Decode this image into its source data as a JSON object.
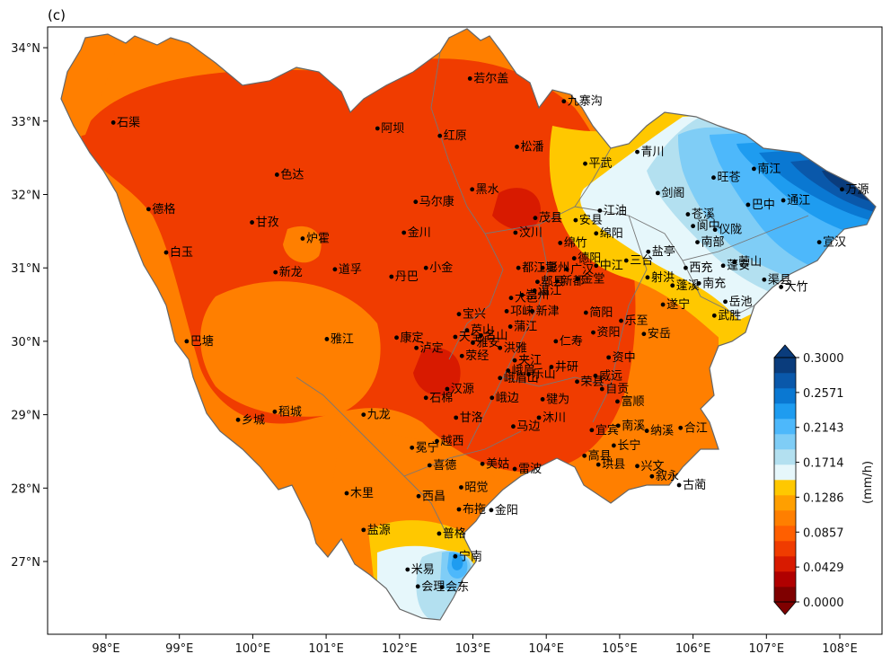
{
  "panel_label": "(c)",
  "unit_label": "(mm/h)",
  "lon_ticks": [
    {
      "lon": 98,
      "label": "98°E"
    },
    {
      "lon": 99,
      "label": "99°E"
    },
    {
      "lon": 100,
      "label": "100°E"
    },
    {
      "lon": 101,
      "label": "101°E"
    },
    {
      "lon": 102,
      "label": "102°E"
    },
    {
      "lon": 103,
      "label": "103°E"
    },
    {
      "lon": 104,
      "label": "104°E"
    },
    {
      "lon": 105,
      "label": "105°E"
    },
    {
      "lon": 106,
      "label": "106°E"
    },
    {
      "lon": 107,
      "label": "107°E"
    },
    {
      "lon": 108,
      "label": "108°E"
    }
  ],
  "lat_ticks": [
    {
      "lat": 34,
      "label": "34°N"
    },
    {
      "lat": 33,
      "label": "33°N"
    },
    {
      "lat": 32,
      "label": "32°N"
    },
    {
      "lat": 31,
      "label": "31°N"
    },
    {
      "lat": 30,
      "label": "30°N"
    },
    {
      "lat": 29,
      "label": "29°N"
    },
    {
      "lat": 28,
      "label": "28°N"
    },
    {
      "lat": 27,
      "label": "27°N"
    }
  ],
  "colorbar": {
    "ticks": [
      "0.0000",
      "0.0429",
      "0.0857",
      "0.1286",
      "0.1714",
      "0.2143",
      "0.2571",
      "0.3000"
    ],
    "colors": [
      "#7f0000",
      "#b00000",
      "#d81a00",
      "#f03c00",
      "#ff5f00",
      "#ff7f00",
      "#ff9f00",
      "#ffc800",
      "#e6f7fb",
      "#b3e0f0",
      "#7fcdf6",
      "#4db8fb",
      "#1e9cf0",
      "#0a78d2",
      "#0a58aa",
      "#0a3c7c"
    ]
  },
  "cities": [
    {
      "name": "若尔盖",
      "lon": 102.96,
      "lat": 33.58
    },
    {
      "name": "九寨沟",
      "lon": 104.24,
      "lat": 33.27
    },
    {
      "name": "石渠",
      "lon": 98.1,
      "lat": 32.98
    },
    {
      "name": "阿坝",
      "lon": 101.7,
      "lat": 32.9
    },
    {
      "name": "红原",
      "lon": 102.55,
      "lat": 32.8
    },
    {
      "name": "松潘",
      "lon": 103.6,
      "lat": 32.65
    },
    {
      "name": "青川",
      "lon": 105.24,
      "lat": 32.58
    },
    {
      "name": "平武",
      "lon": 104.53,
      "lat": 32.42
    },
    {
      "name": "色达",
      "lon": 100.33,
      "lat": 32.27
    },
    {
      "name": "旺苍",
      "lon": 106.28,
      "lat": 32.23
    },
    {
      "name": "南江",
      "lon": 106.83,
      "lat": 32.35
    },
    {
      "name": "万源",
      "lon": 108.03,
      "lat": 32.07
    },
    {
      "name": "黑水",
      "lon": 102.99,
      "lat": 32.07
    },
    {
      "name": "马尔康",
      "lon": 102.22,
      "lat": 31.9
    },
    {
      "name": "剑阁",
      "lon": 105.52,
      "lat": 32.02
    },
    {
      "name": "江油",
      "lon": 104.73,
      "lat": 31.78
    },
    {
      "name": "通江",
      "lon": 107.23,
      "lat": 31.92
    },
    {
      "name": "巴中",
      "lon": 106.75,
      "lat": 31.86
    },
    {
      "name": "德格",
      "lon": 98.58,
      "lat": 31.8
    },
    {
      "name": "苍溪",
      "lon": 105.93,
      "lat": 31.73
    },
    {
      "name": "茂县",
      "lon": 103.85,
      "lat": 31.68
    },
    {
      "name": "安县",
      "lon": 104.4,
      "lat": 31.65
    },
    {
      "name": "阆中",
      "lon": 106.0,
      "lat": 31.57
    },
    {
      "name": "甘孜",
      "lon": 99.99,
      "lat": 31.62
    },
    {
      "name": "仪陇",
      "lon": 106.3,
      "lat": 31.52
    },
    {
      "name": "汶川",
      "lon": 103.58,
      "lat": 31.48
    },
    {
      "name": "金川",
      "lon": 102.06,
      "lat": 31.48
    },
    {
      "name": "绵竹",
      "lon": 104.19,
      "lat": 31.34
    },
    {
      "name": "绵阳",
      "lon": 104.68,
      "lat": 31.47
    },
    {
      "name": "炉霍",
      "lon": 100.68,
      "lat": 31.4
    },
    {
      "name": "宣汉",
      "lon": 107.72,
      "lat": 31.35
    },
    {
      "name": "盐亭",
      "lon": 105.39,
      "lat": 31.22
    },
    {
      "name": "南部",
      "lon": 106.06,
      "lat": 31.35
    },
    {
      "name": "蓬安",
      "lon": 106.41,
      "lat": 31.03
    },
    {
      "name": "德阳",
      "lon": 104.38,
      "lat": 31.13
    },
    {
      "name": "三台",
      "lon": 105.09,
      "lat": 31.1
    },
    {
      "name": "白玉",
      "lon": 98.82,
      "lat": 31.21
    },
    {
      "name": "都江堰",
      "lon": 103.62,
      "lat": 31.0
    },
    {
      "name": "彭州",
      "lon": 103.95,
      "lat": 31.0
    },
    {
      "name": "广汉",
      "lon": 104.28,
      "lat": 30.98
    },
    {
      "name": "中江",
      "lon": 104.68,
      "lat": 31.03
    },
    {
      "name": "营山",
      "lon": 106.57,
      "lat": 31.08
    },
    {
      "name": "西充",
      "lon": 105.9,
      "lat": 31.0
    },
    {
      "name": "渠县",
      "lon": 106.97,
      "lat": 30.84
    },
    {
      "name": "新龙",
      "lon": 100.31,
      "lat": 30.94
    },
    {
      "name": "道孚",
      "lon": 101.12,
      "lat": 30.98
    },
    {
      "name": "小金",
      "lon": 102.36,
      "lat": 31.0
    },
    {
      "name": "丹巴",
      "lon": 101.89,
      "lat": 30.88
    },
    {
      "name": "郫县",
      "lon": 103.88,
      "lat": 30.81
    },
    {
      "name": "射洪",
      "lon": 105.38,
      "lat": 30.87
    },
    {
      "name": "蓬溪",
      "lon": 105.72,
      "lat": 30.76
    },
    {
      "name": "南充",
      "lon": 106.08,
      "lat": 30.79
    },
    {
      "name": "大竹",
      "lon": 107.2,
      "lat": 30.74
    },
    {
      "name": "金堂",
      "lon": 104.43,
      "lat": 30.85
    },
    {
      "name": "大邑",
      "lon": 103.52,
      "lat": 30.59
    },
    {
      "name": "温江",
      "lon": 103.84,
      "lat": 30.69
    },
    {
      "name": "新都",
      "lon": 104.15,
      "lat": 30.82
    },
    {
      "name": "宝兴",
      "lon": 102.81,
      "lat": 30.37
    },
    {
      "name": "邛崃",
      "lon": 103.46,
      "lat": 30.41
    },
    {
      "name": "崇州",
      "lon": 103.67,
      "lat": 30.63
    },
    {
      "name": "岳池",
      "lon": 106.44,
      "lat": 30.54
    },
    {
      "name": "简阳",
      "lon": 104.54,
      "lat": 30.39
    },
    {
      "name": "遂宁",
      "lon": 105.59,
      "lat": 30.5
    },
    {
      "name": "武胜",
      "lon": 106.29,
      "lat": 30.35
    },
    {
      "name": "芦山",
      "lon": 102.92,
      "lat": 30.15
    },
    {
      "name": "新津",
      "lon": 103.81,
      "lat": 30.41
    },
    {
      "name": "乐至",
      "lon": 105.02,
      "lat": 30.28
    },
    {
      "name": "巴塘",
      "lon": 99.1,
      "lat": 30.0
    },
    {
      "name": "雅江",
      "lon": 101.01,
      "lat": 30.03
    },
    {
      "name": "康定",
      "lon": 101.96,
      "lat": 30.05
    },
    {
      "name": "天全",
      "lon": 102.76,
      "lat": 30.06
    },
    {
      "name": "名山",
      "lon": 103.11,
      "lat": 30.08
    },
    {
      "name": "蒲江",
      "lon": 103.51,
      "lat": 30.2
    },
    {
      "name": "仁寿",
      "lon": 104.13,
      "lat": 30.0
    },
    {
      "name": "资阳",
      "lon": 104.64,
      "lat": 30.12
    },
    {
      "name": "安岳",
      "lon": 105.33,
      "lat": 30.1
    },
    {
      "name": "泸定",
      "lon": 102.23,
      "lat": 29.91
    },
    {
      "name": "雅安",
      "lon": 103.0,
      "lat": 29.98
    },
    {
      "name": "洪雅",
      "lon": 103.37,
      "lat": 29.91
    },
    {
      "name": "夹江",
      "lon": 103.57,
      "lat": 29.74
    },
    {
      "name": "资中",
      "lon": 104.85,
      "lat": 29.78
    },
    {
      "name": "荥经",
      "lon": 102.85,
      "lat": 29.8
    },
    {
      "name": "峨眉",
      "lon": 103.48,
      "lat": 29.6
    },
    {
      "name": "井研",
      "lon": 104.07,
      "lat": 29.65
    },
    {
      "name": "威远",
      "lon": 104.67,
      "lat": 29.53
    },
    {
      "name": "汉源",
      "lon": 102.65,
      "lat": 29.35
    },
    {
      "name": "峨眉山",
      "lon": 103.37,
      "lat": 29.5
    },
    {
      "name": "乐山",
      "lon": 103.76,
      "lat": 29.55
    },
    {
      "name": "荣县",
      "lon": 104.42,
      "lat": 29.45
    },
    {
      "name": "自贡",
      "lon": 104.76,
      "lat": 29.35
    },
    {
      "name": "石棉",
      "lon": 102.36,
      "lat": 29.23
    },
    {
      "name": "峨边",
      "lon": 103.26,
      "lat": 29.23
    },
    {
      "name": "犍为",
      "lon": 103.95,
      "lat": 29.21
    },
    {
      "name": "富顺",
      "lon": 104.97,
      "lat": 29.18
    },
    {
      "name": "稻城",
      "lon": 100.3,
      "lat": 29.04
    },
    {
      "name": "九龙",
      "lon": 101.51,
      "lat": 29.0
    },
    {
      "name": "甘洛",
      "lon": 102.77,
      "lat": 28.96
    },
    {
      "name": "乡城",
      "lon": 99.8,
      "lat": 28.93
    },
    {
      "name": "沐川",
      "lon": 103.9,
      "lat": 28.96
    },
    {
      "name": "马边",
      "lon": 103.55,
      "lat": 28.84
    },
    {
      "name": "宜宾",
      "lon": 104.62,
      "lat": 28.79
    },
    {
      "name": "南溪",
      "lon": 104.98,
      "lat": 28.85
    },
    {
      "name": "纳溪",
      "lon": 105.37,
      "lat": 28.78
    },
    {
      "name": "合江",
      "lon": 105.83,
      "lat": 28.82
    },
    {
      "name": "冕宁",
      "lon": 102.17,
      "lat": 28.55
    },
    {
      "name": "越西",
      "lon": 102.51,
      "lat": 28.64
    },
    {
      "name": "长宁",
      "lon": 104.92,
      "lat": 28.58
    },
    {
      "name": "高县",
      "lon": 104.52,
      "lat": 28.44
    },
    {
      "name": "美姑",
      "lon": 103.13,
      "lat": 28.33
    },
    {
      "name": "雷波",
      "lon": 103.57,
      "lat": 28.26
    },
    {
      "name": "珙县",
      "lon": 104.71,
      "lat": 28.32
    },
    {
      "name": "兴文",
      "lon": 105.24,
      "lat": 28.3
    },
    {
      "name": "喜德",
      "lon": 102.41,
      "lat": 28.31
    },
    {
      "name": "叙永",
      "lon": 105.44,
      "lat": 28.16
    },
    {
      "name": "古蔺",
      "lon": 105.81,
      "lat": 28.04
    },
    {
      "name": "昭觉",
      "lon": 102.84,
      "lat": 28.01
    },
    {
      "name": "木里",
      "lon": 101.28,
      "lat": 27.93
    },
    {
      "name": "西昌",
      "lon": 102.26,
      "lat": 27.89
    },
    {
      "name": "布拖",
      "lon": 102.81,
      "lat": 27.71
    },
    {
      "name": "金阳",
      "lon": 103.25,
      "lat": 27.7
    },
    {
      "name": "盐源",
      "lon": 101.51,
      "lat": 27.43
    },
    {
      "name": "普格",
      "lon": 102.54,
      "lat": 27.38
    },
    {
      "name": "宁南",
      "lon": 102.76,
      "lat": 27.07
    },
    {
      "name": "米易",
      "lon": 102.11,
      "lat": 26.89
    },
    {
      "name": "会理",
      "lon": 102.25,
      "lat": 26.66
    },
    {
      "name": "会东",
      "lon": 102.58,
      "lat": 26.65
    }
  ]
}
